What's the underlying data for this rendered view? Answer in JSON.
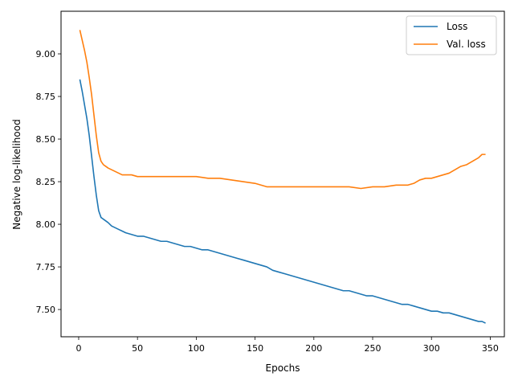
{
  "chart_data": {
    "type": "line",
    "title": "",
    "xlabel": "Epochs",
    "ylabel": "Negative log-likelihood",
    "xlim": [
      -15,
      362
    ],
    "ylim": [
      7.34,
      9.25
    ],
    "xticks": [
      0,
      50,
      100,
      150,
      200,
      250,
      300,
      350
    ],
    "yticks": [
      7.5,
      7.75,
      8.0,
      8.25,
      8.5,
      8.75,
      9.0
    ],
    "ytick_labels": [
      "7.50",
      "7.75",
      "8.00",
      "8.25",
      "8.50",
      "8.75",
      "9.00"
    ],
    "grid": false,
    "legend": "top-right",
    "series": [
      {
        "name": "Loss",
        "color": "#1f77b4",
        "x": [
          1,
          3,
          5,
          7,
          9,
          11,
          13,
          15,
          17,
          19,
          21,
          23,
          25,
          28,
          31,
          34,
          37,
          40,
          45,
          50,
          55,
          60,
          65,
          70,
          75,
          80,
          85,
          90,
          95,
          100,
          105,
          110,
          115,
          120,
          125,
          130,
          135,
          140,
          145,
          150,
          155,
          160,
          165,
          170,
          175,
          180,
          185,
          190,
          195,
          200,
          205,
          210,
          215,
          220,
          225,
          230,
          235,
          240,
          245,
          250,
          255,
          260,
          265,
          270,
          275,
          280,
          285,
          290,
          295,
          300,
          305,
          310,
          315,
          320,
          325,
          330,
          335,
          340,
          343,
          346
        ],
        "values": [
          8.85,
          8.78,
          8.7,
          8.62,
          8.52,
          8.4,
          8.28,
          8.17,
          8.08,
          8.04,
          8.03,
          8.02,
          8.01,
          7.99,
          7.98,
          7.97,
          7.96,
          7.95,
          7.94,
          7.93,
          7.93,
          7.92,
          7.91,
          7.9,
          7.9,
          7.89,
          7.88,
          7.87,
          7.87,
          7.86,
          7.85,
          7.85,
          7.84,
          7.83,
          7.82,
          7.81,
          7.8,
          7.79,
          7.78,
          7.77,
          7.76,
          7.75,
          7.73,
          7.72,
          7.71,
          7.7,
          7.69,
          7.68,
          7.67,
          7.66,
          7.65,
          7.64,
          7.63,
          7.62,
          7.61,
          7.61,
          7.6,
          7.59,
          7.58,
          7.58,
          7.57,
          7.56,
          7.55,
          7.54,
          7.53,
          7.53,
          7.52,
          7.51,
          7.5,
          7.49,
          7.49,
          7.48,
          7.48,
          7.47,
          7.46,
          7.45,
          7.44,
          7.43,
          7.43,
          7.42
        ]
      },
      {
        "name": "Val. loss",
        "color": "#ff7f0e",
        "x": [
          1,
          3,
          5,
          7,
          9,
          11,
          13,
          15,
          17,
          19,
          21,
          23,
          25,
          28,
          31,
          34,
          37,
          40,
          45,
          50,
          60,
          70,
          80,
          90,
          100,
          110,
          120,
          130,
          140,
          150,
          160,
          170,
          180,
          190,
          200,
          210,
          220,
          230,
          240,
          250,
          260,
          270,
          280,
          285,
          290,
          295,
          300,
          305,
          310,
          315,
          320,
          325,
          330,
          335,
          340,
          343,
          346
        ],
        "values": [
          9.14,
          9.08,
          9.02,
          8.95,
          8.86,
          8.76,
          8.64,
          8.52,
          8.42,
          8.37,
          8.35,
          8.34,
          8.33,
          8.32,
          8.31,
          8.3,
          8.29,
          8.29,
          8.29,
          8.28,
          8.28,
          8.28,
          8.28,
          8.28,
          8.28,
          8.27,
          8.27,
          8.26,
          8.25,
          8.24,
          8.22,
          8.22,
          8.22,
          8.22,
          8.22,
          8.22,
          8.22,
          8.22,
          8.21,
          8.22,
          8.22,
          8.23,
          8.23,
          8.24,
          8.26,
          8.27,
          8.27,
          8.28,
          8.29,
          8.3,
          8.32,
          8.34,
          8.35,
          8.37,
          8.39,
          8.41,
          8.41
        ]
      }
    ]
  }
}
